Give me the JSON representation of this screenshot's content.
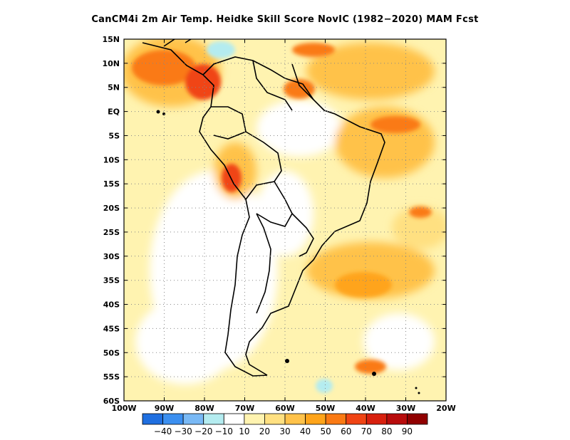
{
  "title": "CanCM4i  2m Air Temp. Heidke Skill Score NovIC (1982−2020) MAM Fcst",
  "map": {
    "lon_range": [
      -100,
      -20
    ],
    "lat_range": [
      -60,
      15
    ],
    "lat_labels": [
      "15N",
      "10N",
      "5N",
      "EQ",
      "5S",
      "10S",
      "15S",
      "20S",
      "25S",
      "30S",
      "35S",
      "40S",
      "45S",
      "50S",
      "55S",
      "60S"
    ],
    "lon_labels": [
      "100W",
      "90W",
      "80W",
      "70W",
      "60W",
      "50W",
      "40W",
      "30W",
      "20W"
    ],
    "gridlines": "dotted"
  },
  "colorbar": {
    "colors": [
      "#1f6fe0",
      "#3b8ff0",
      "#79b9f5",
      "#b4ecf0",
      "#ffffff",
      "#fff3b0",
      "#ffe081",
      "#ffc24a",
      "#ffa41a",
      "#fa7a14",
      "#f04414",
      "#d8200e",
      "#b80c0c",
      "#900000"
    ],
    "labels": [
      "−40",
      "−30",
      "−20",
      "−10",
      "10",
      "20",
      "30",
      "40",
      "50",
      "60",
      "70",
      "80",
      "90"
    ]
  }
}
